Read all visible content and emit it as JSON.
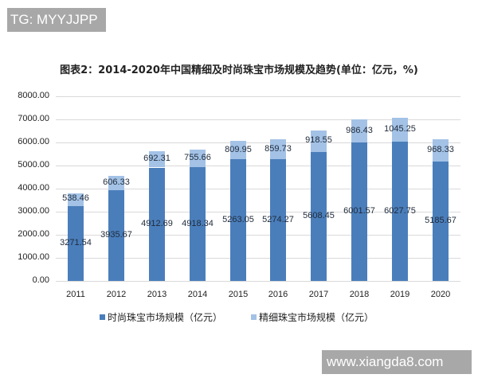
{
  "overlays": {
    "top_tag": "TG: MYYJJPP",
    "bottom_tag": "www.xiangda8.com"
  },
  "colors": {
    "fashion": "#4a7ebb",
    "fine": "#a3c2e6",
    "grid": "#d9d9d9"
  },
  "chart_data": {
    "type": "bar",
    "stacked": true,
    "title": "图表2：2014-2020年中国精细及时尚珠宝市场规模及趋势(单位：亿元，%)",
    "xlabel": "",
    "ylabel": "",
    "ylim": [
      0,
      8000
    ],
    "yticks": [
      "0.00",
      "1000.00",
      "2000.00",
      "3000.00",
      "4000.00",
      "5000.00",
      "6000.00",
      "7000.00",
      "8000.00"
    ],
    "grid": true,
    "legend_position": "bottom",
    "categories": [
      "2011",
      "2012",
      "2013",
      "2014",
      "2015",
      "2016",
      "2017",
      "2018",
      "2019",
      "2020"
    ],
    "series": [
      {
        "name": "时尚珠宝市场规模（亿元）",
        "values": [
          3271.54,
          3935.67,
          4912.69,
          4918.34,
          5263.05,
          5274.27,
          5608.45,
          6001.57,
          6027.75,
          5185.67
        ],
        "labels": [
          "3271.54",
          "3935.67",
          "4912.69",
          "4918.34",
          "5263.05",
          "5274.27",
          "5608.45",
          "6001.57",
          "6027.75",
          "5185.67"
        ]
      },
      {
        "name": "精细珠宝市场规模（亿元）",
        "values": [
          538.46,
          606.33,
          692.31,
          755.66,
          809.95,
          859.73,
          918.55,
          986.43,
          1045.25,
          968.33
        ],
        "labels": [
          "538.46",
          "606.33",
          "692.31",
          "755.66",
          "809.95",
          "859.73",
          "918.55",
          "986.43",
          "1045.25",
          "968.33"
        ]
      }
    ]
  }
}
